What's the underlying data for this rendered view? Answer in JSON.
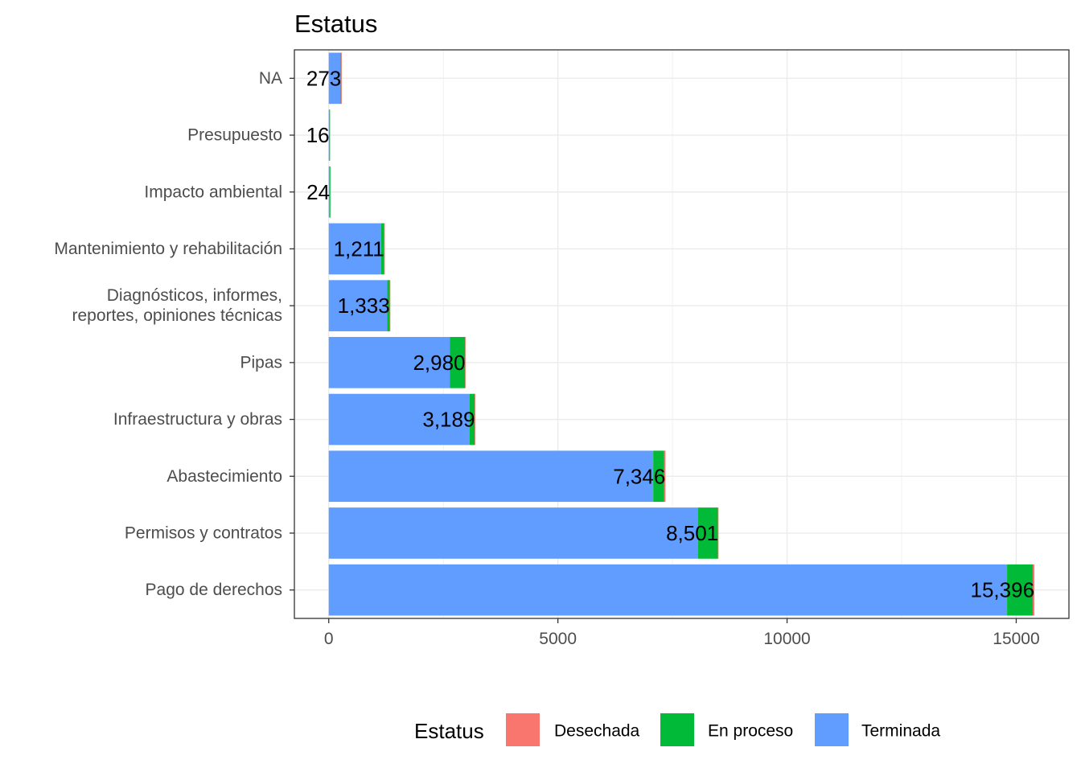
{
  "chart_data": {
    "type": "bar",
    "orientation": "horizontal",
    "stacked": true,
    "title": "Estatus",
    "xlabel": "",
    "ylabel": "",
    "categories": [
      [
        "NA"
      ],
      [
        "Presupuesto"
      ],
      [
        "Impacto ambiental"
      ],
      [
        "Mantenimiento y rehabilitación"
      ],
      [
        "Diagnósticos, informes,",
        "reportes, opiniones técnicas"
      ],
      [
        "Pipas"
      ],
      [
        "Infraestructura y obras"
      ],
      [
        "Abastecimiento"
      ],
      [
        "Permisos y contratos"
      ],
      [
        "Pago de derechos"
      ]
    ],
    "series": [
      {
        "name": "Terminada",
        "color": "#619CFF",
        "values": [
          255,
          14,
          22,
          1140,
          1275,
          2640,
          3075,
          7080,
          8060,
          14800
        ]
      },
      {
        "name": "En proceso",
        "color": "#00BA38",
        "values": [
          17,
          2,
          2,
          68,
          55,
          335,
          110,
          240,
          430,
          560
        ]
      },
      {
        "name": "Desechada",
        "color": "#F8766D",
        "values": [
          1,
          0,
          0,
          3,
          3,
          5,
          4,
          26,
          11,
          36
        ]
      }
    ],
    "totals": [
      "273",
      "16",
      "24",
      "1,211",
      "1,333",
      "2,980",
      "3,189",
      "7,346",
      "8,501",
      "15,396"
    ],
    "xlim": [
      -750,
      16150
    ],
    "xticks": [
      0,
      5000,
      10000,
      15000
    ],
    "xtick_labels": [
      "0",
      "5000",
      "10000",
      "15000"
    ],
    "grid": true,
    "legend": {
      "title": "Estatus",
      "position": "bottom",
      "entries": [
        {
          "label": "Desechada",
          "color": "#F8766D"
        },
        {
          "label": "En proceso",
          "color": "#00BA38"
        },
        {
          "label": "Terminada",
          "color": "#619CFF"
        }
      ]
    }
  }
}
